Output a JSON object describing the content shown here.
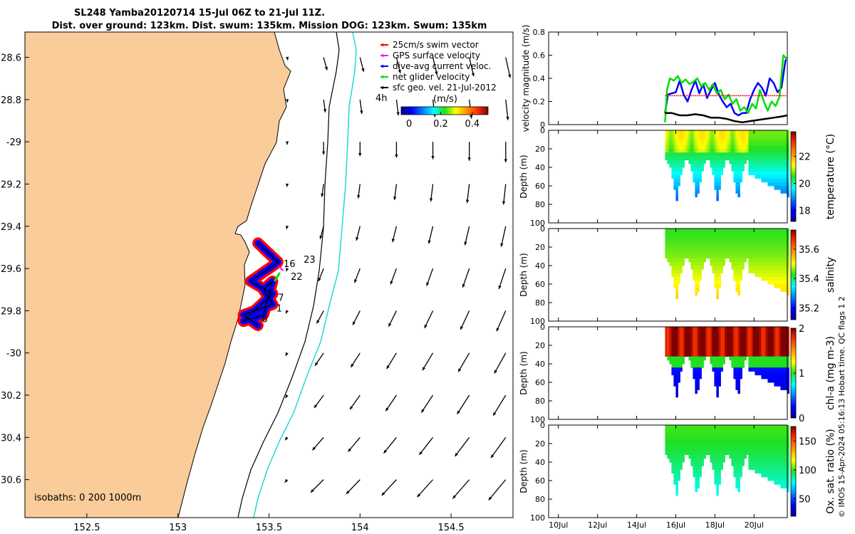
{
  "figure": {
    "title_line1": "SL248 Yamba20120714 15-Jul 06Z to 21-Jul 11Z.",
    "title_line2": "Dist. over ground: 123km. Dist. swum: 135km. Mission DOG: 123km. Swum: 135km",
    "side_credit": "© IMOS 15-Apr-2024 05:16:13 Hobart time. QC flags 1  2"
  },
  "chart_data": [
    {
      "type": "scatter",
      "panel": "map",
      "x_ticks": [
        152.5,
        153,
        153.5,
        154,
        154.5
      ],
      "y_ticks": [
        -28.6,
        -28.8,
        -29,
        -29.2,
        -29.4,
        -29.6,
        -29.8,
        -30,
        -30.2,
        -30.4,
        -30.6
      ],
      "y_tick_labels": [
        "28.6",
        "28.8",
        "-29",
        "29.2",
        "29.4",
        "29.6",
        "29.8",
        "-30",
        "30.2",
        "30.4",
        "30.6"
      ],
      "xlim": [
        152.16,
        154.84
      ],
      "ylim": [
        -30.78,
        -28.48
      ],
      "legend": {
        "placement": "top-right",
        "entries": [
          {
            "label": "25cm/s swim vector",
            "color": "#ff0000"
          },
          {
            "label": "GPS surface velocity",
            "color": "#ff00ff"
          },
          {
            "label": "dive-avg current veloc.",
            "color": "#0000ff"
          },
          {
            "label": "net glider velocity",
            "color": "#00dd00"
          },
          {
            "label": "sfc geo. vel. 21-Jul-2012",
            "color": "#000000"
          }
        ]
      },
      "colorbar": {
        "label": "(m/s)",
        "side_label": "4h",
        "ticks": [
          0,
          0.2,
          0.4
        ],
        "tick_labels": [
          "0",
          "0.2",
          "0.4"
        ],
        "range": [
          -0.05,
          0.5
        ]
      },
      "isobath_note": "isobaths: 0   200  1000m",
      "annotations": [
        {
          "text": "16",
          "lon": 153.58,
          "lat": -29.58
        },
        {
          "text": "22",
          "lon": 153.62,
          "lat": -29.64
        },
        {
          "text": "23",
          "lon": 153.69,
          "lat": -29.56
        },
        {
          "text": "7",
          "lon": 153.55,
          "lat": -29.74
        },
        {
          "text": "1",
          "lon": 153.54,
          "lat": -29.79
        },
        {
          "text": "8",
          "lon": 153.46,
          "lat": -29.84
        }
      ],
      "track": [
        [
          153.44,
          -29.48
        ],
        [
          153.55,
          -29.57
        ],
        [
          153.4,
          -29.66
        ],
        [
          153.52,
          -29.72
        ],
        [
          153.36,
          -29.85
        ],
        [
          153.47,
          -29.82
        ],
        [
          153.52,
          -29.66
        ],
        [
          153.47,
          -29.7
        ],
        [
          153.52,
          -29.77
        ],
        [
          153.36,
          -29.82
        ],
        [
          153.44,
          -29.87
        ]
      ],
      "geo_vectors": {
        "note": "surface geostrophic velocity, components in m/s",
        "lons": [
          153.6,
          153.8,
          154.0,
          154.2,
          154.4,
          154.6,
          154.8
        ],
        "lats": [
          -28.6,
          -28.8,
          -29.0,
          -29.2,
          -29.4,
          -29.6,
          -29.8,
          -30.0,
          -30.2,
          -30.4,
          -30.6
        ],
        "u_offshore": [
          0.04,
          0.02,
          0.0,
          -0.02,
          -0.04,
          -0.06,
          -0.08,
          -0.1,
          -0.11,
          -0.13,
          -0.15
        ],
        "v_offshore": -0.18
      }
    },
    {
      "type": "line",
      "panel": "velocity",
      "ylabel": "velocity magnitude (m/s)",
      "ylim": [
        0,
        0.8
      ],
      "y_ticks": [
        0,
        0.2,
        0.4,
        0.6,
        0.8
      ],
      "x_ticks": [
        "10Jul",
        "12Jul",
        "14Jul",
        "16Jul",
        "18Jul",
        "20Jul"
      ],
      "x_tick_days": [
        10,
        12,
        14,
        16,
        18,
        20
      ],
      "xlim": [
        9.5,
        21.7
      ],
      "series": [
        {
          "color": "#0000ff",
          "x": [
            15.45,
            15.6,
            15.8,
            16.0,
            16.2,
            16.4,
            16.6,
            16.8,
            17.0,
            17.2,
            17.4,
            17.6,
            17.8,
            18.0,
            18.2,
            18.4,
            18.6,
            18.8,
            19.0,
            19.2,
            19.4,
            19.6,
            19.8,
            20.0,
            20.2,
            20.4,
            20.6,
            20.8,
            21.0,
            21.2,
            21.4,
            21.6,
            21.7
          ],
          "y": [
            0.1,
            0.26,
            0.27,
            0.28,
            0.38,
            0.26,
            0.2,
            0.3,
            0.38,
            0.27,
            0.35,
            0.23,
            0.3,
            0.36,
            0.26,
            0.2,
            0.15,
            0.18,
            0.1,
            0.08,
            0.1,
            0.1,
            0.22,
            0.3,
            0.36,
            0.32,
            0.25,
            0.4,
            0.36,
            0.28,
            0.32,
            0.55,
            0.58
          ]
        },
        {
          "color": "#00dd00",
          "x": [
            15.45,
            15.55,
            15.7,
            15.9,
            16.1,
            16.3,
            16.5,
            16.7,
            16.9,
            17.1,
            17.3,
            17.5,
            17.7,
            17.9,
            18.1,
            18.3,
            18.5,
            18.7,
            18.9,
            19.1,
            19.3,
            19.5,
            19.7,
            19.9,
            20.1,
            20.3,
            20.5,
            20.7,
            20.9,
            21.1,
            21.3,
            21.5,
            21.7
          ],
          "y": [
            0.02,
            0.3,
            0.4,
            0.38,
            0.42,
            0.36,
            0.39,
            0.35,
            0.37,
            0.4,
            0.33,
            0.36,
            0.3,
            0.35,
            0.27,
            0.3,
            0.22,
            0.26,
            0.18,
            0.22,
            0.12,
            0.15,
            0.1,
            0.18,
            0.14,
            0.3,
            0.2,
            0.12,
            0.2,
            0.16,
            0.24,
            0.6,
            0.56
          ]
        },
        {
          "color": "#ff0000",
          "x": [
            15.45,
            21.7
          ],
          "y": [
            0.25,
            0.25
          ]
        },
        {
          "color": "#000000",
          "x": [
            15.45,
            15.8,
            16.2,
            16.6,
            17.0,
            17.4,
            17.8,
            18.2,
            18.6,
            19.0,
            19.4,
            19.8,
            20.2,
            20.6,
            21.0,
            21.4,
            21.7
          ],
          "y": [
            0.1,
            0.1,
            0.08,
            0.08,
            0.09,
            0.08,
            0.06,
            0.06,
            0.05,
            0.03,
            0.02,
            0.03,
            0.04,
            0.05,
            0.06,
            0.07,
            0.08
          ]
        }
      ]
    },
    {
      "type": "heatmap",
      "panel": "temperature",
      "ylabel": "Depth (m)",
      "colorbar_label": "temperature (°C)",
      "colorbar_ticks": [
        18,
        20,
        22
      ],
      "clim": [
        17.2,
        23.8
      ],
      "y_ticks": [
        0,
        20,
        40,
        60,
        80,
        100
      ],
      "ylim": [
        0,
        100
      ],
      "x_ticks": [
        "10Jul",
        "12Jul",
        "14Jul",
        "16Jul",
        "18Jul",
        "20Jul"
      ],
      "top_value": 20.8,
      "bottom_value": 18.3
    },
    {
      "type": "heatmap",
      "panel": "salinity",
      "ylabel": "Depth (m)",
      "colorbar_label": "salinity",
      "colorbar_ticks": [
        35.2,
        35.4,
        35.6
      ],
      "clim": [
        35.12,
        35.73
      ],
      "y_ticks": [
        0,
        20,
        40,
        60,
        80,
        100
      ],
      "ylim": [
        0,
        100
      ],
      "x_ticks": [
        "10Jul",
        "12Jul",
        "14Jul",
        "16Jul",
        "18Jul",
        "20Jul"
      ],
      "top_value": 35.43,
      "bottom_value": 35.55
    },
    {
      "type": "heatmap",
      "panel": "chl-a",
      "ylabel": "Depth (m)",
      "colorbar_label": "chl-a (mg m-3)",
      "colorbar_ticks": [
        0,
        1,
        2
      ],
      "clim": [
        0,
        2
      ],
      "y_ticks": [
        0,
        20,
        40,
        60,
        80,
        100
      ],
      "ylim": [
        0,
        100
      ],
      "x_ticks": [
        "10Jul",
        "12Jul",
        "14Jul",
        "16Jul",
        "18Jul",
        "20Jul"
      ],
      "top_value": 1.95,
      "bottom_value": 0.1
    },
    {
      "type": "heatmap",
      "panel": "oxygen",
      "ylabel": "Depth (m)",
      "colorbar_label": "Ox. sat. ratio (%)",
      "colorbar_ticks": [
        50,
        100,
        150
      ],
      "clim": [
        20,
        175
      ],
      "y_ticks": [
        0,
        20,
        40,
        60,
        80,
        100
      ],
      "ylim": [
        0,
        100
      ],
      "x_ticks": [
        "10Jul",
        "12Jul",
        "14Jul",
        "16Jul",
        "18Jul",
        "20Jul"
      ],
      "top_value": 100,
      "bottom_value": 75
    }
  ]
}
